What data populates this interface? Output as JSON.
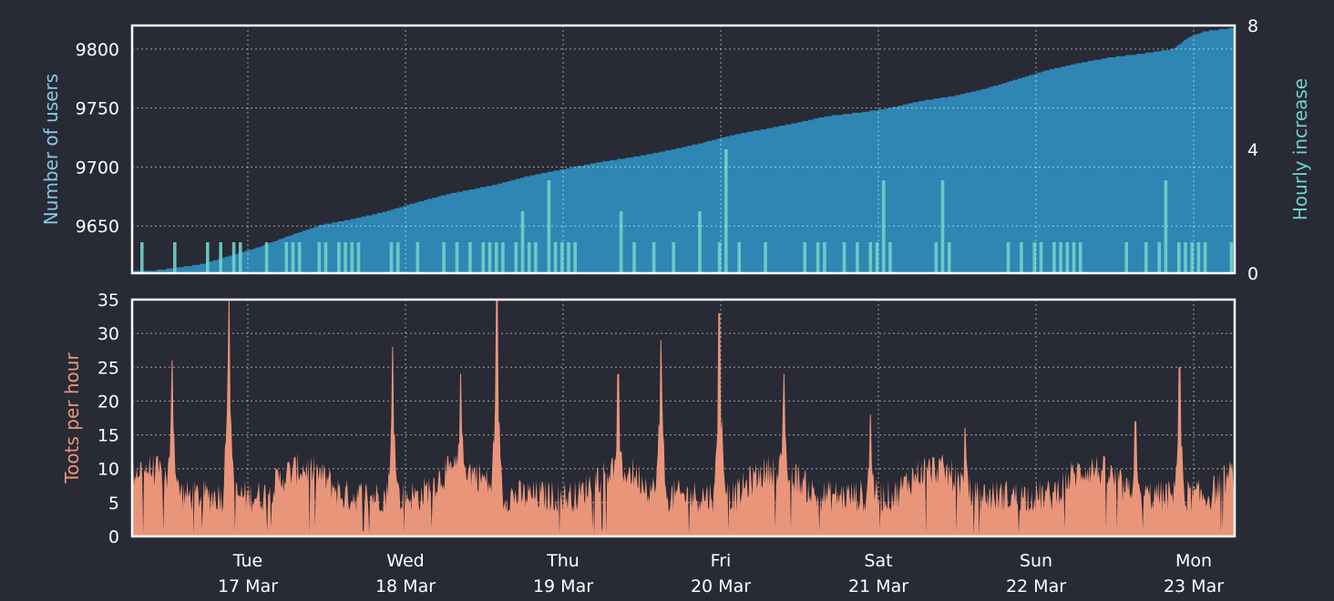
{
  "colors": {
    "background": "#282a35",
    "users_fill": "#2e86b3",
    "hourly_fill": "#6fd3c8",
    "toots_fill": "#e9957a",
    "users_label": "#85c9e8",
    "hourly_label": "#6fd3c8",
    "toots_label": "#e9957a",
    "tick_text": "#ffffff",
    "frame": "#ffffff"
  },
  "chart_data": [
    {
      "type": "area",
      "ylabel": "Number of users",
      "y2label": "Hourly increase",
      "ylim": [
        9610,
        9820
      ],
      "yticks": [
        9650,
        9700,
        9750,
        9800
      ],
      "y2lim": [
        0,
        8
      ],
      "y2ticks": [
        0,
        4,
        8
      ],
      "grid": true,
      "x_days": [
        0,
        1,
        2,
        3,
        4,
        5,
        6,
        7
      ],
      "users_series": {
        "days": [
          0,
          0.12,
          0.25,
          0.45,
          0.6,
          0.8,
          1.0,
          1.2,
          1.4,
          1.6,
          1.8,
          2.0,
          2.3,
          2.5,
          2.8,
          3.0,
          3.2,
          3.4,
          3.6,
          3.8,
          4.0,
          4.2,
          4.4,
          4.6,
          4.8,
          5.0,
          5.2,
          5.4,
          5.6,
          5.8,
          6.0,
          6.2,
          6.4,
          6.6,
          6.7,
          6.8,
          6.98
        ],
        "values": [
          9612,
          9612,
          9614,
          9618,
          9624,
          9632,
          9642,
          9651,
          9656,
          9662,
          9670,
          9677,
          9685,
          9692,
          9700,
          9705,
          9709,
          9714,
          9720,
          9727,
          9732,
          9737,
          9743,
          9746,
          9750,
          9756,
          9760,
          9766,
          9774,
          9782,
          9788,
          9793,
          9796,
          9800,
          9810,
          9815,
          9818
        ]
      },
      "hourly_increase_note": "hourly series is mostly 0-1 with spikes up to about 4"
    },
    {
      "type": "area",
      "ylabel": "Toots per hour",
      "ylim": [
        0,
        35
      ],
      "yticks": [
        0,
        5,
        10,
        15,
        20,
        25,
        30,
        35
      ],
      "grid": true,
      "x_days": [
        0,
        1,
        2,
        3,
        4,
        5,
        6,
        7
      ],
      "x_tick_labels": [
        {
          "day": "Tue",
          "date": "17 Mar"
        },
        {
          "day": "Wed",
          "date": "18 Mar"
        },
        {
          "day": "Thu",
          "date": "19 Mar"
        },
        {
          "day": "Fri",
          "date": "20 Mar"
        },
        {
          "day": "Sat",
          "date": "21 Mar"
        },
        {
          "day": "Sun",
          "date": "22 Mar"
        },
        {
          "day": "Mon",
          "date": "23 Mar"
        }
      ],
      "peaks": [
        {
          "day": 0.52,
          "value": 26
        },
        {
          "day": 0.88,
          "value": 35
        },
        {
          "day": 1.92,
          "value": 28
        },
        {
          "day": 2.35,
          "value": 24
        },
        {
          "day": 2.58,
          "value": 35
        },
        {
          "day": 3.35,
          "value": 24
        },
        {
          "day": 3.62,
          "value": 29
        },
        {
          "day": 3.99,
          "value": 33
        },
        {
          "day": 4.4,
          "value": 24
        },
        {
          "day": 4.95,
          "value": 18
        },
        {
          "day": 5.55,
          "value": 16
        },
        {
          "day": 6.63,
          "value": 17
        },
        {
          "day": 6.91,
          "value": 25
        }
      ]
    }
  ]
}
